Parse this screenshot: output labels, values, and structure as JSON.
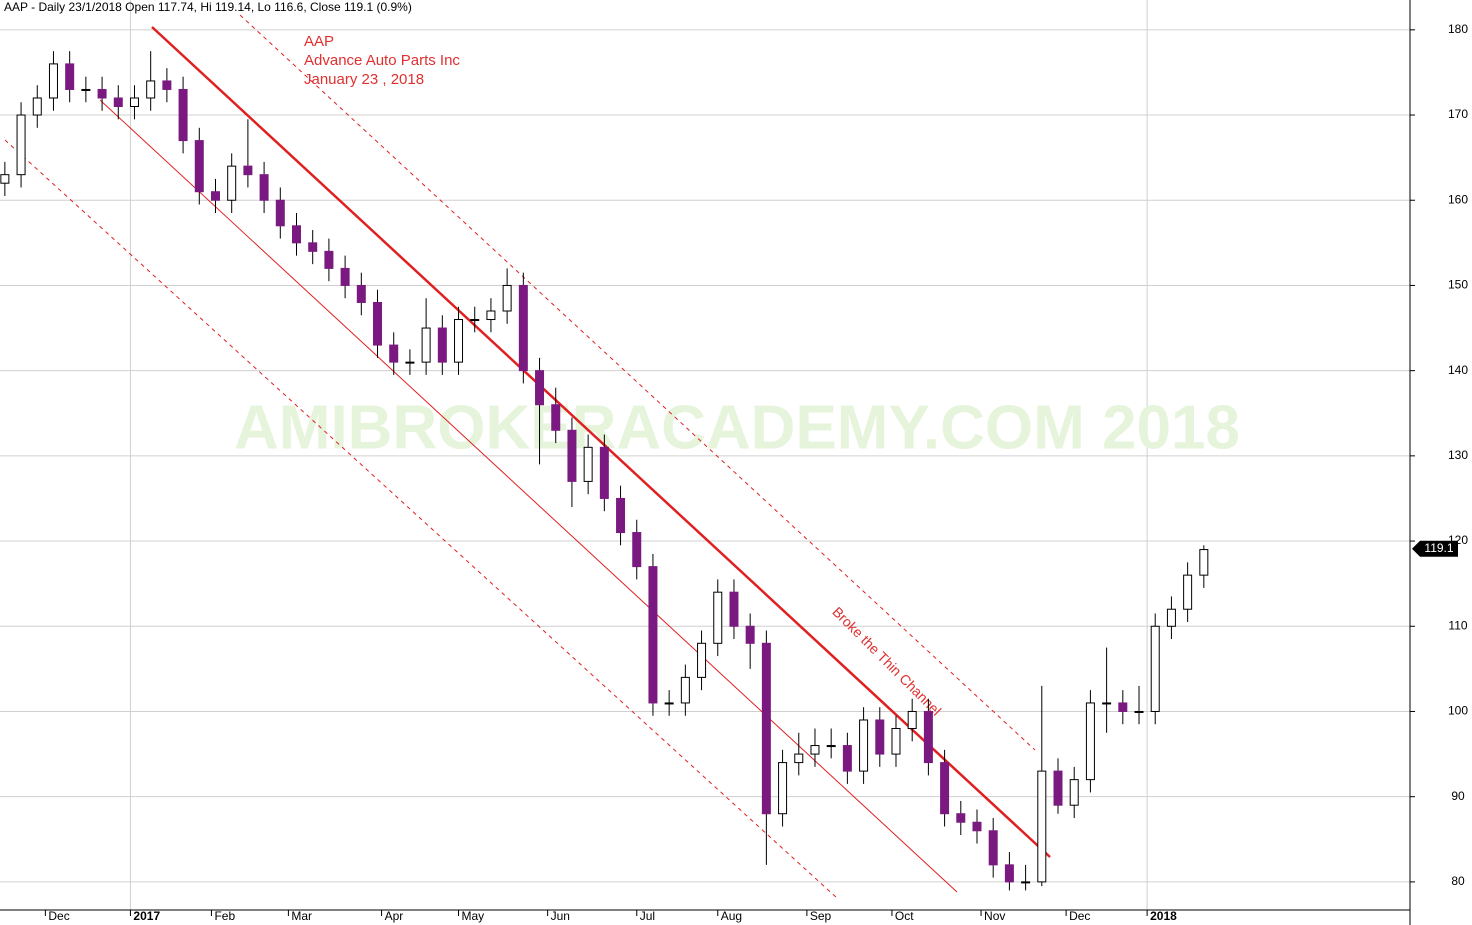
{
  "chart_data": {
    "type": "candlestick",
    "title": "AAP - Daily 23/1/2018 Open 117.74, Hi 119.14, Lo 116.6, Close 119.1 (0.9%)",
    "annotations": [
      "AAP",
      "Advance Auto Parts Inc",
      "January 23 , 2018"
    ],
    "channel_note": "Broke the Thin Channel",
    "watermark": "AMIBROKERACADEMY.COM  2018",
    "last_price": 119.1,
    "up_color": "#ffffff",
    "down_color": "#7a1a80",
    "outline_color": "#000000",
    "x": [
      0,
      4,
      8,
      12,
      16,
      20,
      24,
      28,
      32,
      36,
      40,
      44,
      48,
      52,
      56,
      60,
      64,
      68,
      72,
      76,
      80,
      84,
      88,
      92,
      96,
      100,
      104,
      108,
      112,
      116,
      120,
      124,
      128,
      132,
      136,
      140,
      144,
      148,
      152,
      156,
      160,
      164,
      168,
      172,
      176,
      180,
      184,
      188,
      192,
      196,
      200,
      204,
      208,
      212,
      216,
      220,
      224,
      228,
      232,
      236,
      240,
      244,
      248,
      252,
      256,
      260,
      264,
      268,
      272,
      276,
      280,
      284,
      288,
      292,
      296
    ],
    "open": [
      162,
      163,
      170,
      172,
      176,
      173,
      173,
      172,
      171,
      172,
      174,
      173,
      167,
      161,
      160,
      164,
      163,
      160,
      157,
      155,
      154,
      152,
      150,
      148,
      143,
      141,
      141,
      145,
      141,
      146,
      146,
      147,
      150,
      140,
      136,
      133,
      127,
      131,
      125,
      121,
      117,
      101,
      101,
      104,
      108,
      114,
      110,
      108,
      88,
      94,
      95,
      96,
      96,
      93,
      99,
      95,
      98,
      100,
      94,
      88,
      87,
      86,
      82,
      80,
      80,
      93,
      89,
      92,
      101,
      101,
      100,
      100,
      110,
      112,
      116
    ],
    "high": [
      164.5,
      171.5,
      173.5,
      177.5,
      177.5,
      174.5,
      174.5,
      173.5,
      173.5,
      177.5,
      175.5,
      174.5,
      168.5,
      162.5,
      165.5,
      169.5,
      164.5,
      161.5,
      158.5,
      156.5,
      155.5,
      153.5,
      151.5,
      149.5,
      144.5,
      142.5,
      148.5,
      146.5,
      147.5,
      147.5,
      148.5,
      152,
      151.5,
      141.5,
      138,
      134.5,
      132.5,
      132.5,
      126.5,
      122.5,
      118.5,
      102.5,
      105.5,
      109.5,
      115.5,
      115.5,
      111.5,
      109.5,
      95.5,
      97.5,
      98,
      98,
      97.5,
      100.5,
      100.5,
      99.5,
      101.5,
      101.5,
      95.5,
      89.5,
      88.5,
      87.5,
      83.5,
      82,
      103,
      94.5,
      93.5,
      102.5,
      107.5,
      102.5,
      103,
      111.5,
      113.5,
      117.5,
      119.5
    ],
    "low": [
      160.5,
      161.5,
      168.5,
      170.5,
      171.5,
      171.5,
      170.5,
      169.5,
      169.5,
      170.5,
      171.5,
      165.5,
      159.5,
      158.5,
      158.5,
      161.5,
      158.5,
      155.5,
      153.5,
      152.5,
      150.5,
      148.5,
      146.5,
      141.5,
      139.5,
      139.5,
      139.5,
      139.5,
      139.5,
      144.5,
      144.5,
      145.5,
      138.5,
      129,
      131.5,
      124,
      125.5,
      123.5,
      119.5,
      115.5,
      99.5,
      99.5,
      99.5,
      102.5,
      106.5,
      108.5,
      105,
      82,
      86.5,
      92.5,
      93.5,
      94.5,
      91.5,
      91.5,
      93.5,
      93.5,
      96.5,
      92.5,
      86.5,
      85.5,
      84.5,
      80.5,
      79,
      79,
      79.5,
      88,
      87.5,
      90.5,
      97.5,
      98.5,
      98.5,
      98.5,
      108.5,
      110.5,
      114.5
    ],
    "close": [
      163,
      170,
      172,
      176,
      173,
      173,
      172,
      171,
      172,
      174,
      173,
      167,
      161,
      160,
      164,
      163,
      160,
      157,
      155,
      154,
      152,
      150,
      148,
      143,
      141,
      141,
      145,
      141,
      146,
      146,
      147,
      150,
      140,
      136,
      133,
      127,
      131,
      125,
      121,
      117,
      101,
      101,
      104,
      108,
      114,
      110,
      108,
      88,
      94,
      95,
      96,
      96,
      93,
      99,
      95,
      98,
      100,
      94,
      88,
      87,
      86,
      82,
      80,
      80,
      93,
      89,
      92,
      101,
      101,
      100,
      100,
      110,
      112,
      116,
      119
    ],
    "xlim": [
      -1.2,
      346.9
    ],
    "xticks": [
      {
        "value": 10,
        "label": "Dec"
      },
      {
        "value": 31,
        "label": "2017"
      },
      {
        "value": 51,
        "label": "Feb"
      },
      {
        "value": 70,
        "label": "Mar"
      },
      {
        "value": 93,
        "label": "Apr"
      },
      {
        "value": 112,
        "label": "May"
      },
      {
        "value": 134,
        "label": "Jun"
      },
      {
        "value": 156,
        "label": "Jul"
      },
      {
        "value": 176,
        "label": "Aug"
      },
      {
        "value": 198,
        "label": "Sep"
      },
      {
        "value": 219,
        "label": "Oct"
      },
      {
        "value": 241,
        "label": "Nov"
      },
      {
        "value": 262,
        "label": "Dec"
      },
      {
        "value": 282,
        "label": "2018"
      }
    ],
    "ylim": [
      76.7,
      183.5
    ],
    "yticks": [
      80,
      90,
      100,
      110,
      120,
      130,
      140,
      150,
      160,
      170,
      180
    ],
    "grid": true
  }
}
